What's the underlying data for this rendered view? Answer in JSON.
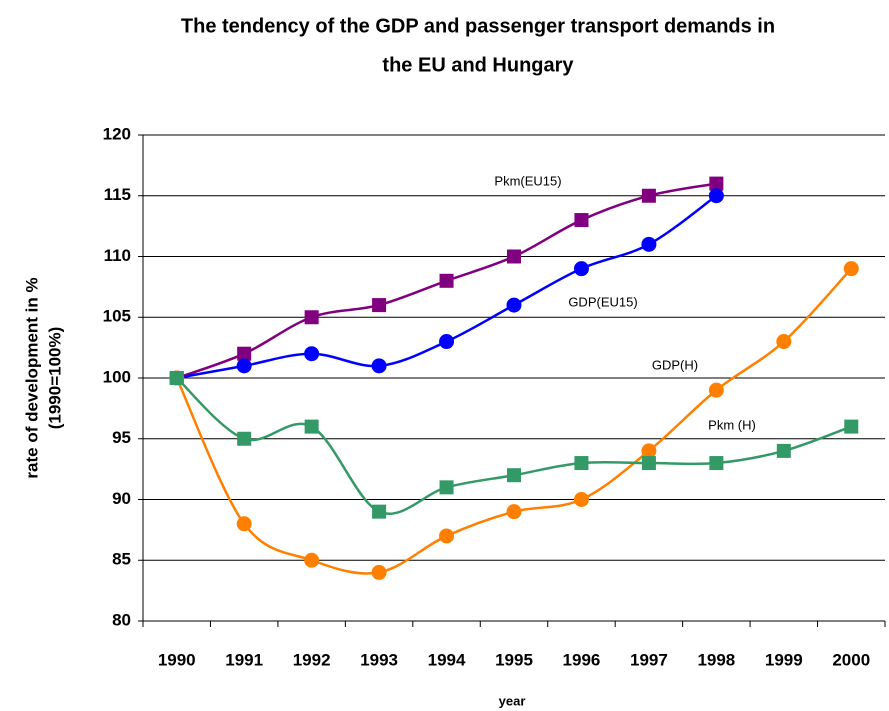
{
  "chart_data": {
    "type": "line",
    "title": [
      "The tendency of the GDP and passenger transport demands in",
      "the EU and Hungary"
    ],
    "y_label": [
      "rate of development in %",
      "(1990=100%)"
    ],
    "x_label": "year",
    "categories": [
      "1990",
      "1991",
      "1992",
      "1993",
      "1994",
      "1995",
      "1996",
      "1997",
      "1998",
      "1999",
      "2000"
    ],
    "ylim": [
      80,
      120
    ],
    "yticks": [
      80,
      85,
      90,
      95,
      100,
      105,
      110,
      115,
      120
    ],
    "grid": true,
    "series": [
      {
        "name": "Pkm(EU15)",
        "color": "#800080",
        "marker": "square",
        "values": [
          100,
          102,
          105,
          106,
          108,
          110,
          113,
          115,
          116,
          null,
          null
        ]
      },
      {
        "name": "GDP(EU15)",
        "color": "#0000ff",
        "marker": "circle",
        "values": [
          100,
          101,
          102,
          101,
          103,
          106,
          109,
          111,
          115,
          null,
          null
        ]
      },
      {
        "name": "GDP(H)",
        "color": "#ff8000",
        "marker": "circle",
        "values": [
          100,
          88,
          85,
          84,
          87,
          89,
          90,
          94,
          99,
          103,
          109
        ]
      },
      {
        "name": "Pkm (H)",
        "color": "#339966",
        "marker": "square",
        "values": [
          100,
          95,
          96,
          89,
          91,
          92,
          93,
          93,
          93,
          94,
          96
        ]
      }
    ]
  }
}
